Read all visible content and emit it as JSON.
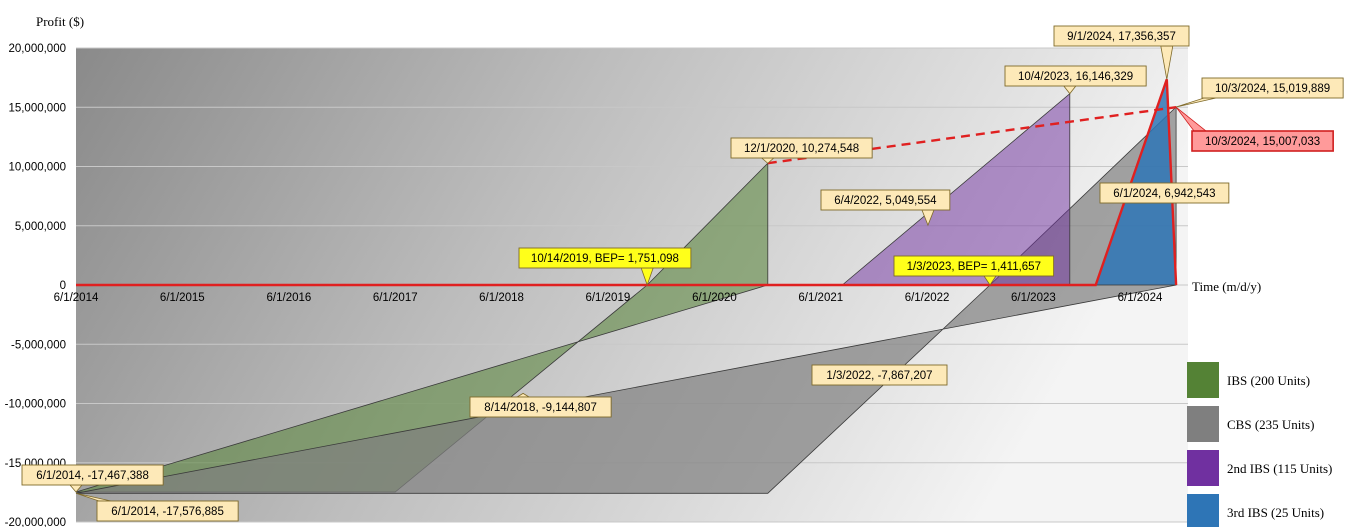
{
  "chart_data": {
    "type": "area",
    "title": "",
    "ylabel": "Profit ($)",
    "xlabel": "Time (m/d/y)",
    "ylim": [
      -20000000,
      20000000
    ],
    "xlim": [
      "6/1/2014",
      "10/3/2024"
    ],
    "yticks": [
      20000000,
      15000000,
      10000000,
      5000000,
      0,
      -5000000,
      -10000000,
      -15000000,
      -20000000
    ],
    "ytick_labels": [
      "20,000,000",
      "15,000,000",
      "10,000,000",
      "5,000,000",
      "0",
      "-5,000,000",
      "-10,000,000",
      "-15,000,000",
      "-20,000,000"
    ],
    "xticks": [
      "6/1/2014",
      "6/1/2015",
      "6/1/2016",
      "6/1/2017",
      "6/1/2018",
      "6/1/2019",
      "6/1/2020",
      "6/1/2021",
      "6/1/2022",
      "6/1/2023",
      "6/1/2024"
    ],
    "grid": true,
    "legend_position": "right",
    "series": [
      {
        "name": "IBS (200 Units)",
        "color": "#548235",
        "points": [
          {
            "x": "6/1/2014",
            "y": -17467388
          },
          {
            "x": "6/1/2017",
            "y": -17467388
          },
          {
            "x": "10/14/2019",
            "y": 0
          },
          {
            "x": "12/1/2020",
            "y": 10274548
          },
          {
            "x": "12/1/2020",
            "y": 0
          }
        ]
      },
      {
        "name": "CBS (235 Units)",
        "color": "#7f7f7f",
        "points": [
          {
            "x": "6/1/2014",
            "y": -17576885
          },
          {
            "x": "12/1/2020",
            "y": -17576885
          },
          {
            "x": "1/3/2023",
            "y": 0
          },
          {
            "x": "10/3/2024",
            "y": 15019889
          },
          {
            "x": "10/3/2024",
            "y": 0
          }
        ]
      },
      {
        "name": "2nd IBS (115 Units)",
        "color": "#7030a0",
        "points": [
          {
            "x": "8/14/2021",
            "y": 0
          },
          {
            "x": "10/4/2023",
            "y": 16146329
          },
          {
            "x": "10/4/2023",
            "y": 0
          }
        ]
      },
      {
        "name": "3rd IBS (25 Units)",
        "color": "#2e75b6",
        "points": [
          {
            "x": "1/1/2024",
            "y": 0
          },
          {
            "x": "9/1/2024",
            "y": 17356357
          },
          {
            "x": "10/3/2024",
            "y": 0
          }
        ]
      }
    ],
    "lines": [
      {
        "style": "dashed",
        "color": "#e02020",
        "points": [
          {
            "x": "12/1/2020",
            "y": 10274548
          },
          {
            "x": "10/3/2024",
            "y": 15007033
          }
        ]
      },
      {
        "style": "solid",
        "color": "#e02020",
        "points": [
          {
            "x": "6/1/2014",
            "y": 0
          },
          {
            "x": "1/1/2024",
            "y": 0
          },
          {
            "x": "9/1/2024",
            "y": 17356357
          },
          {
            "x": "10/3/2024",
            "y": 0
          }
        ]
      }
    ],
    "annotations": [
      {
        "text": "9/1/2024, 17,356,357",
        "x": "9/1/2024",
        "y": 17356357,
        "style": "normal"
      },
      {
        "text": "10/4/2023, 16,146,329",
        "x": "10/4/2023",
        "y": 16146329,
        "style": "normal"
      },
      {
        "text": "10/3/2024, 15,019,889",
        "x": "10/3/2024",
        "y": 15019889,
        "style": "normal"
      },
      {
        "text": "10/3/2024, 15,007,033",
        "x": "10/3/2024",
        "y": 15007033,
        "style": "red"
      },
      {
        "text": "12/1/2020, 10,274,548",
        "x": "12/1/2020",
        "y": 10274548,
        "style": "normal"
      },
      {
        "text": "6/4/2022, 5,049,554",
        "x": "6/4/2022",
        "y": 5049554,
        "style": "normal"
      },
      {
        "text": "6/1/2024, 6,942,543",
        "x": "6/1/2024",
        "y": 6942543,
        "style": "normal"
      },
      {
        "text": "10/14/2019, BEP= 1,751,098",
        "x": "10/14/2019",
        "y": 0,
        "style": "yellow"
      },
      {
        "text": "1/3/2023, BEP= 1,411,657",
        "x": "1/3/2023",
        "y": 0,
        "style": "yellow"
      },
      {
        "text": "1/3/2022, -7,867,207",
        "x": "1/3/2022",
        "y": -7867207,
        "style": "normal"
      },
      {
        "text": "8/14/2018, -9,144,807",
        "x": "8/14/2018",
        "y": -9144807,
        "style": "normal"
      },
      {
        "text": "6/1/2014, -17,467,388",
        "x": "6/1/2014",
        "y": -17467388,
        "style": "normal"
      },
      {
        "text": "6/1/2014, -17,576,885",
        "x": "6/1/2014",
        "y": -17576885,
        "style": "normal"
      }
    ]
  }
}
